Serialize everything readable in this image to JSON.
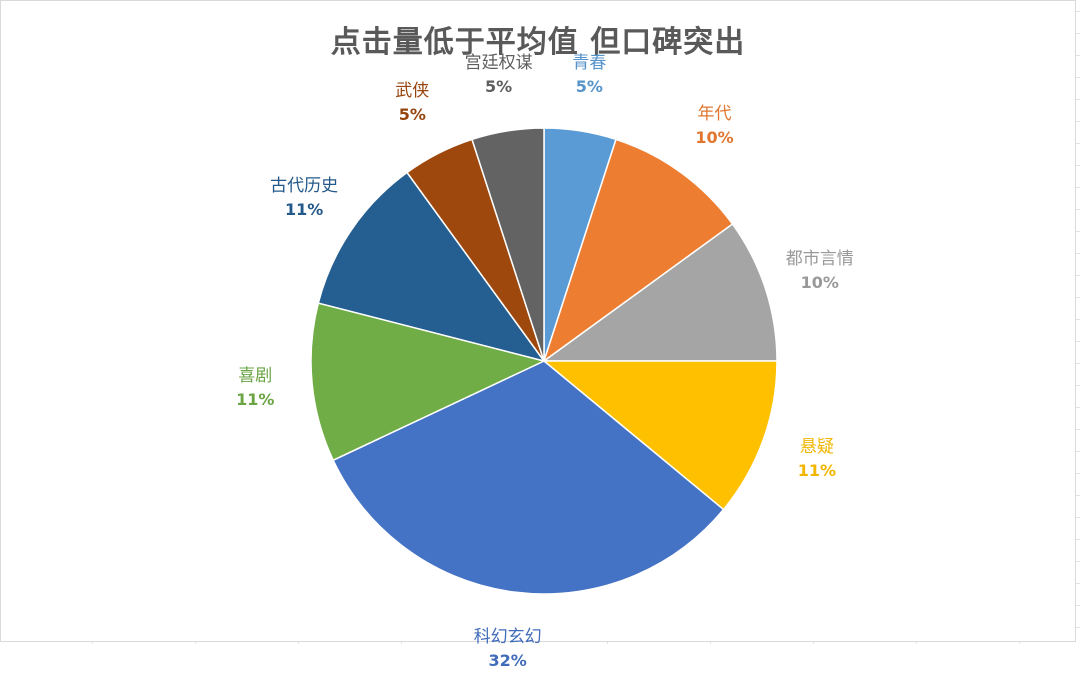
{
  "chart_data": {
    "type": "pie",
    "title": "点击量低于平均值  但口碑突出",
    "start_angle_deg": 0,
    "direction": "clockwise",
    "slices": [
      {
        "label": "青春",
        "value": 5,
        "value_label": "5%",
        "color": "#5B9BD5"
      },
      {
        "label": "年代",
        "value": 10,
        "value_label": "10%",
        "color": "#ED7D31"
      },
      {
        "label": "都市言情",
        "value": 10,
        "value_label": "10%",
        "color": "#A5A5A5"
      },
      {
        "label": "悬疑",
        "value": 11,
        "value_label": "11%",
        "color": "#FFC000"
      },
      {
        "label": "科幻玄幻",
        "value": 32,
        "value_label": "32%",
        "color": "#4472C4"
      },
      {
        "label": "喜剧",
        "value": 11,
        "value_label": "11%",
        "color": "#70AD47"
      },
      {
        "label": "古代历史",
        "value": 11,
        "value_label": "11%",
        "color": "#255E91"
      },
      {
        "label": "武侠",
        "value": 5,
        "value_label": "5%",
        "color": "#9E480E"
      },
      {
        "label": "宫廷权谋",
        "value": 5,
        "value_label": "5%",
        "color": "#636363"
      }
    ],
    "legend": "none"
  }
}
